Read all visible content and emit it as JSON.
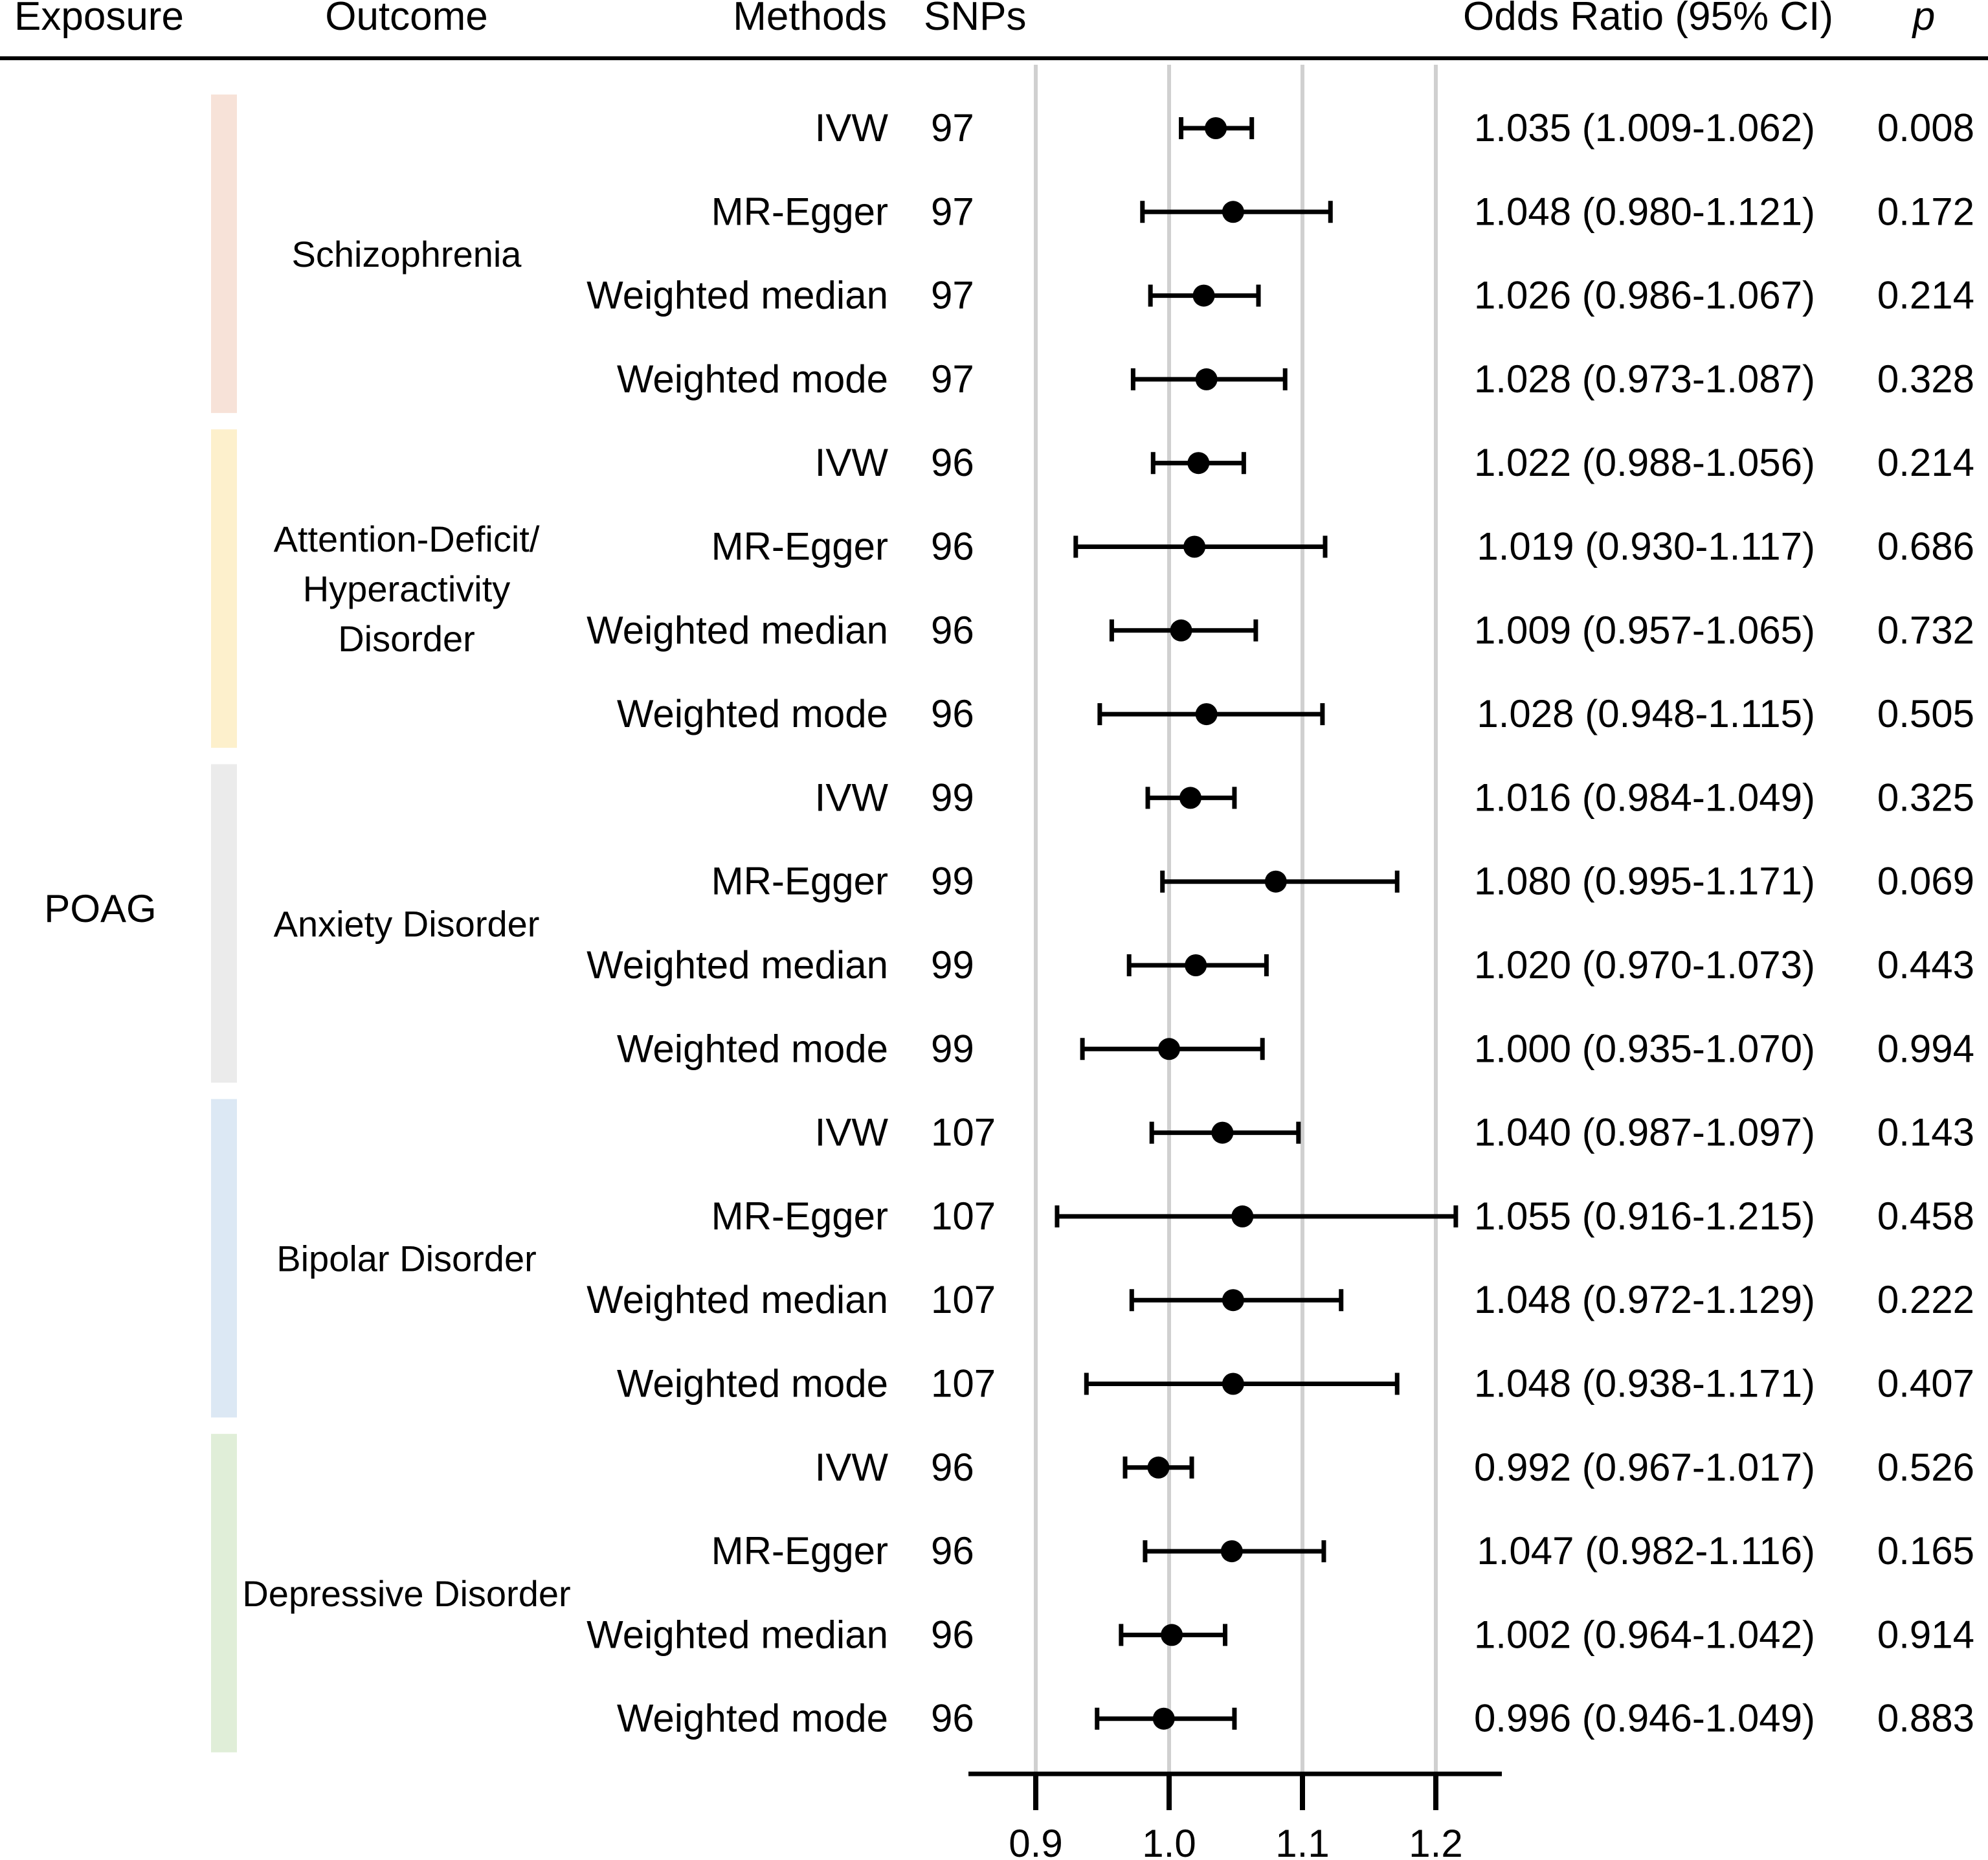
{
  "chart_data": {
    "type": "forest",
    "headers": {
      "exposure": "Exposure",
      "outcome": "Outcome",
      "methods": "Methods",
      "snps": "SNPs",
      "or": "Odds Ratio (95% CI)",
      "p": "p"
    },
    "exposure": "POAG",
    "x_axis": {
      "range": [
        0.85,
        1.25
      ],
      "ticks": [
        0.9,
        1.0,
        1.1,
        1.2
      ],
      "tick_labels": [
        "0.9",
        "1.0",
        "1.1",
        "1.2"
      ],
      "gridlines": [
        0.9,
        1.0,
        1.1,
        1.2
      ],
      "grid": true
    },
    "groups": [
      {
        "outcome_lines": [
          "Schizophrenia"
        ],
        "color": "#f7e2d8",
        "rows": [
          {
            "method": "IVW",
            "snps": "97",
            "or": 1.035,
            "lo": 1.009,
            "hi": 1.062,
            "or_text": "1.035 (1.009-1.062)",
            "p": "0.008"
          },
          {
            "method": "MR-Egger",
            "snps": "97",
            "or": 1.048,
            "lo": 0.98,
            "hi": 1.121,
            "or_text": "1.048 (0.980-1.121)",
            "p": "0.172"
          },
          {
            "method": "Weighted median",
            "snps": "97",
            "or": 1.026,
            "lo": 0.986,
            "hi": 1.067,
            "or_text": "1.026 (0.986-1.067)",
            "p": "0.214"
          },
          {
            "method": "Weighted mode",
            "snps": "97",
            "or": 1.028,
            "lo": 0.973,
            "hi": 1.087,
            "or_text": "1.028 (0.973-1.087)",
            "p": "0.328"
          }
        ]
      },
      {
        "outcome_lines": [
          "Attention-Deficit/",
          "Hyperactivity",
          "Disorder"
        ],
        "color": "#fdf0cc",
        "rows": [
          {
            "method": "IVW",
            "snps": "96",
            "or": 1.022,
            "lo": 0.988,
            "hi": 1.056,
            "or_text": "1.022 (0.988-1.056)",
            "p": "0.214"
          },
          {
            "method": "MR-Egger",
            "snps": "96",
            "or": 1.019,
            "lo": 0.93,
            "hi": 1.117,
            "or_text": "1.019 (0.930-1.117)",
            "p": "0.686"
          },
          {
            "method": "Weighted median",
            "snps": "96",
            "or": 1.009,
            "lo": 0.957,
            "hi": 1.065,
            "or_text": "1.009 (0.957-1.065)",
            "p": "0.732"
          },
          {
            "method": "Weighted mode",
            "snps": "96",
            "or": 1.028,
            "lo": 0.948,
            "hi": 1.115,
            "or_text": "1.028 (0.948-1.115)",
            "p": "0.505"
          }
        ]
      },
      {
        "outcome_lines": [
          "Anxiety Disorder"
        ],
        "color": "#ebebeb",
        "rows": [
          {
            "method": "IVW",
            "snps": "99",
            "or": 1.016,
            "lo": 0.984,
            "hi": 1.049,
            "or_text": "1.016 (0.984-1.049)",
            "p": "0.325"
          },
          {
            "method": "MR-Egger",
            "snps": "99",
            "or": 1.08,
            "lo": 0.995,
            "hi": 1.171,
            "or_text": "1.080 (0.995-1.171)",
            "p": "0.069"
          },
          {
            "method": "Weighted median",
            "snps": "99",
            "or": 1.02,
            "lo": 0.97,
            "hi": 1.073,
            "or_text": "1.020 (0.970-1.073)",
            "p": "0.443"
          },
          {
            "method": "Weighted mode",
            "snps": "99",
            "or": 1.0,
            "lo": 0.935,
            "hi": 1.07,
            "or_text": "1.000 (0.935-1.070)",
            "p": "0.994"
          }
        ]
      },
      {
        "outcome_lines": [
          "Bipolar Disorder"
        ],
        "color": "#dce8f4",
        "rows": [
          {
            "method": "IVW",
            "snps": "107",
            "or": 1.04,
            "lo": 0.987,
            "hi": 1.097,
            "or_text": "1.040 (0.987-1.097)",
            "p": "0.143"
          },
          {
            "method": "MR-Egger",
            "snps": "107",
            "or": 1.055,
            "lo": 0.916,
            "hi": 1.215,
            "or_text": "1.055 (0.916-1.215)",
            "p": "0.458"
          },
          {
            "method": "Weighted median",
            "snps": "107",
            "or": 1.048,
            "lo": 0.972,
            "hi": 1.129,
            "or_text": "1.048 (0.972-1.129)",
            "p": "0.222"
          },
          {
            "method": "Weighted mode",
            "snps": "107",
            "or": 1.048,
            "lo": 0.938,
            "hi": 1.171,
            "or_text": "1.048 (0.938-1.171)",
            "p": "0.407"
          }
        ]
      },
      {
        "outcome_lines": [
          "Depressive  Disorder"
        ],
        "color": "#e0eed8",
        "rows": [
          {
            "method": "IVW",
            "snps": "96",
            "or": 0.992,
            "lo": 0.967,
            "hi": 1.017,
            "or_text": "0.992 (0.967-1.017)",
            "p": "0.526"
          },
          {
            "method": "MR-Egger",
            "snps": "96",
            "or": 1.047,
            "lo": 0.982,
            "hi": 1.116,
            "or_text": "1.047 (0.982-1.116)",
            "p": "0.165"
          },
          {
            "method": "Weighted median",
            "snps": "96",
            "or": 1.002,
            "lo": 0.964,
            "hi": 1.042,
            "or_text": "1.002 (0.964-1.042)",
            "p": "0.914"
          },
          {
            "method": "Weighted mode",
            "snps": "96",
            "or": 0.996,
            "lo": 0.946,
            "hi": 1.049,
            "or_text": "0.996 (0.946-1.049)",
            "p": "0.883"
          }
        ]
      }
    ]
  }
}
